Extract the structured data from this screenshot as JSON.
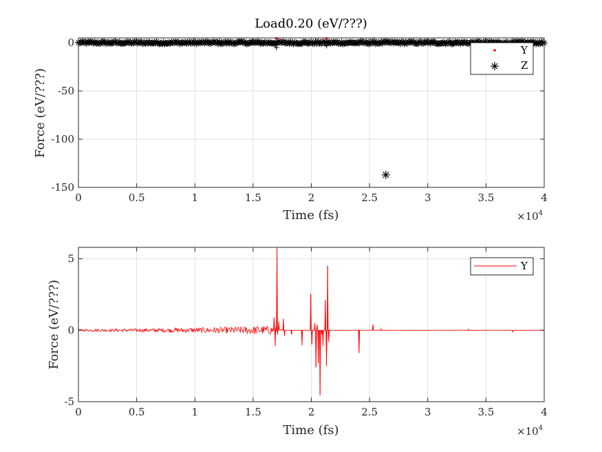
{
  "chart_data": [
    {
      "type": "scatter",
      "title": "Load0.20 (eV/???)",
      "xlabel": "Time (fs)",
      "ylabel": "Force (eV/???)",
      "x_exponent_label": "×10",
      "x_exponent": "4",
      "xlim": [
        0,
        40000
      ],
      "ylim": [
        -150,
        5
      ],
      "grid": true,
      "legend_position": "top-right",
      "x_ticks": [
        0,
        5000,
        10000,
        15000,
        20000,
        25000,
        30000,
        35000,
        40000
      ],
      "x_tick_labels": [
        "0",
        "0.5",
        "1",
        "1.5",
        "2",
        "2.5",
        "3",
        "3.5",
        "4"
      ],
      "y_ticks": [
        -150,
        -100,
        -50,
        0
      ],
      "y_tick_labels": [
        "-150",
        "-100",
        "-50",
        "0"
      ],
      "series": [
        {
          "name": "Y",
          "marker": "dot",
          "color": "#ff0000",
          "x": [
            17000,
            21300
          ],
          "y": [
            4.5,
            4.3
          ]
        },
        {
          "name": "Z",
          "marker": "asterisk",
          "color": "#000000",
          "band": {
            "x_start": 0,
            "x_end": 40000,
            "y_center": 0,
            "y_spread": 2.5,
            "spikes": [
              [
                17000,
                -5
              ],
              [
                21300,
                -3
              ]
            ]
          },
          "x": [
            26400
          ],
          "y": [
            -137
          ]
        }
      ]
    },
    {
      "type": "line",
      "xlabel": "Time (fs)",
      "ylabel": "Force (eV/???)",
      "x_exponent_label": "×10",
      "x_exponent": "4",
      "xlim": [
        0,
        40000
      ],
      "ylim": [
        -5,
        5.8
      ],
      "grid": true,
      "legend_position": "top-right",
      "x_ticks": [
        0,
        5000,
        10000,
        15000,
        20000,
        25000,
        30000,
        35000,
        40000
      ],
      "x_tick_labels": [
        "0",
        "0.5",
        "1",
        "1.5",
        "2",
        "2.5",
        "3",
        "3.5",
        "4"
      ],
      "y_ticks": [
        -5,
        0,
        5
      ],
      "y_tick_labels": [
        "-5",
        "0",
        "5"
      ],
      "series": [
        {
          "name": "Y",
          "color": "#ff0000",
          "noise": [
            [
              0,
              0.08
            ],
            [
              5000,
              0.12
            ],
            [
              10000,
              0.18
            ],
            [
              12500,
              0.22
            ],
            [
              15000,
              0.3
            ],
            [
              16800,
              0.3
            ],
            [
              17500,
              0.02
            ]
          ],
          "spikes": [
            [
              16800,
              0.9
            ],
            [
              16900,
              -1.1
            ],
            [
              17050,
              5.8
            ],
            [
              17100,
              -0.3
            ],
            [
              17200,
              0.6
            ],
            [
              17600,
              0.8
            ],
            [
              17700,
              -0.4
            ],
            [
              18300,
              -0.3
            ],
            [
              19200,
              -1.05
            ],
            [
              19950,
              2.55
            ],
            [
              20050,
              -1.0
            ],
            [
              20300,
              0.5
            ],
            [
              20400,
              -2.6
            ],
            [
              20500,
              0.4
            ],
            [
              20600,
              -2.3
            ],
            [
              20750,
              -4.55
            ],
            [
              20900,
              -0.3
            ],
            [
              21000,
              -1.1
            ],
            [
              21200,
              2.1
            ],
            [
              21300,
              -2.5
            ],
            [
              21400,
              4.5
            ],
            [
              21500,
              -0.8
            ],
            [
              24100,
              -1.6
            ],
            [
              25300,
              0.4
            ],
            [
              26000,
              0.1
            ],
            [
              33500,
              0.08
            ],
            [
              37300,
              -0.12
            ]
          ]
        }
      ]
    }
  ]
}
